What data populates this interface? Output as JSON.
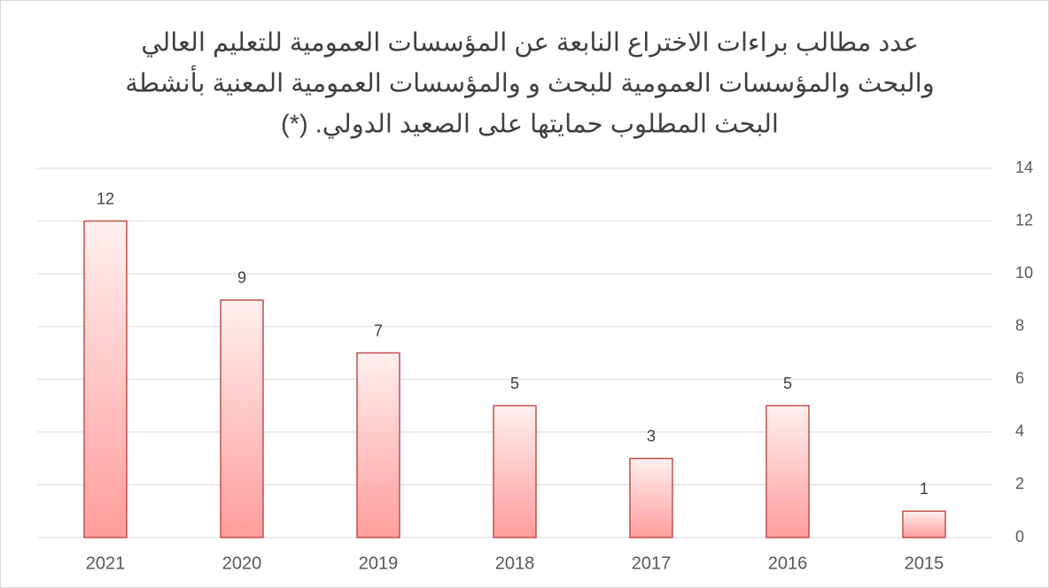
{
  "chart_data": {
    "type": "bar",
    "title": [
      "عدد مطالب براءات الاختراع النابعة عن المؤسسات العمومية للتعليم العالي",
      "والبحث والمؤسسات  العمومية للبحث و والمؤسسات العمومية المعنية بأنشطة",
      "البحث المطلوب حمايتها على الصعيد الدولي. (*)"
    ],
    "categories": [
      "2021",
      "2020",
      "2019",
      "2018",
      "2017",
      "2016",
      "2015"
    ],
    "values": [
      12,
      9,
      7,
      5,
      3,
      5,
      1
    ],
    "color": "#ff9d9d",
    "edge_color": "#c0504d",
    "ylim": [
      0,
      14
    ],
    "yticks": [
      0,
      2,
      4,
      6,
      8,
      10,
      12,
      14
    ],
    "grid": true,
    "yaxis_side": "right"
  }
}
